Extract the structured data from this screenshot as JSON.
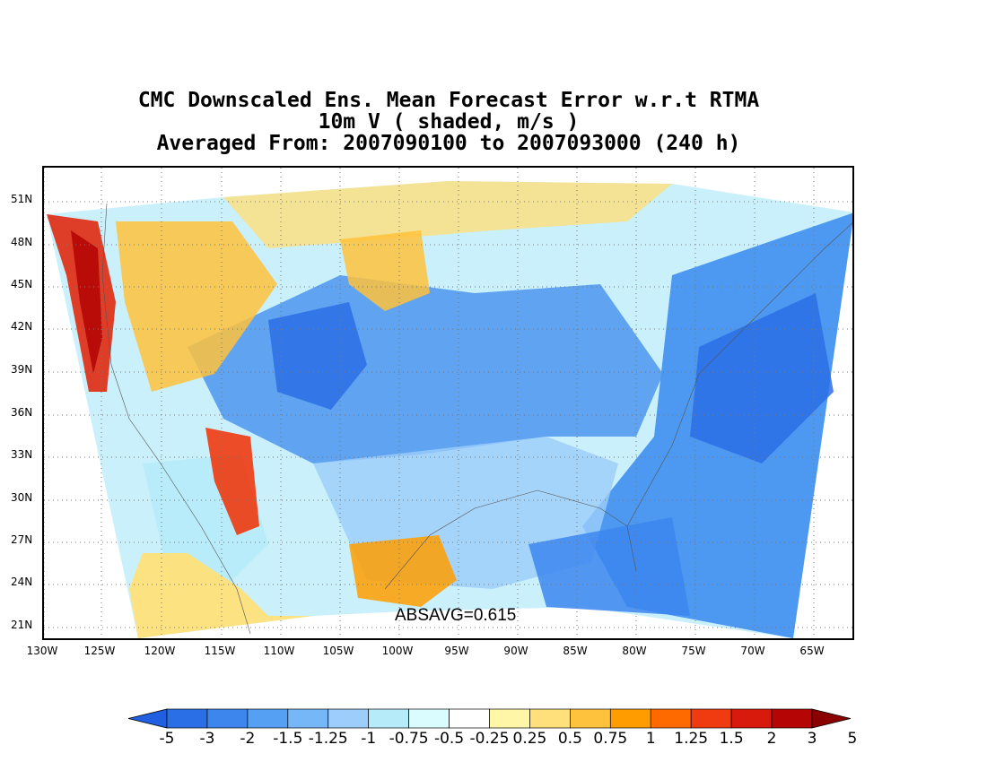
{
  "title": {
    "line1": "CMC Downscaled Ens. Mean Forecast Error w.r.t RTMA",
    "line2": "10m V ( shaded, m/s )",
    "line3": "Averaged From: 2007090100 to 2007093000 (240 h)"
  },
  "absavg": "ABSAVG=0.615",
  "lat_labels": [
    "51N",
    "48N",
    "45N",
    "42N",
    "39N",
    "36N",
    "33N",
    "30N",
    "27N",
    "24N",
    "21N"
  ],
  "lon_labels": [
    "130W",
    "125W",
    "120W",
    "115W",
    "110W",
    "105W",
    "100W",
    "95W",
    "90W",
    "85W",
    "80W",
    "75W",
    "70W",
    "65W"
  ],
  "colorbar": {
    "labels": [
      "-5",
      "-3",
      "-2",
      "-1.5",
      "-1.25",
      "-1",
      "-0.75",
      "-0.5",
      "-0.25",
      "0.25",
      "0.5",
      "0.75",
      "1",
      "1.25",
      "1.5",
      "2",
      "3",
      "5"
    ],
    "colors": [
      "#1f5fe0",
      "#2b6fe6",
      "#3c86ee",
      "#56a0f4",
      "#76b7f8",
      "#9ccdfb",
      "#b6ebfa",
      "#dafcff",
      "#ffffff",
      "#fff6a8",
      "#ffe07a",
      "#ffc23c",
      "#ff9d00",
      "#ff6a00",
      "#f03a10",
      "#d81a0d",
      "#b50505",
      "#8a0000"
    ]
  }
}
